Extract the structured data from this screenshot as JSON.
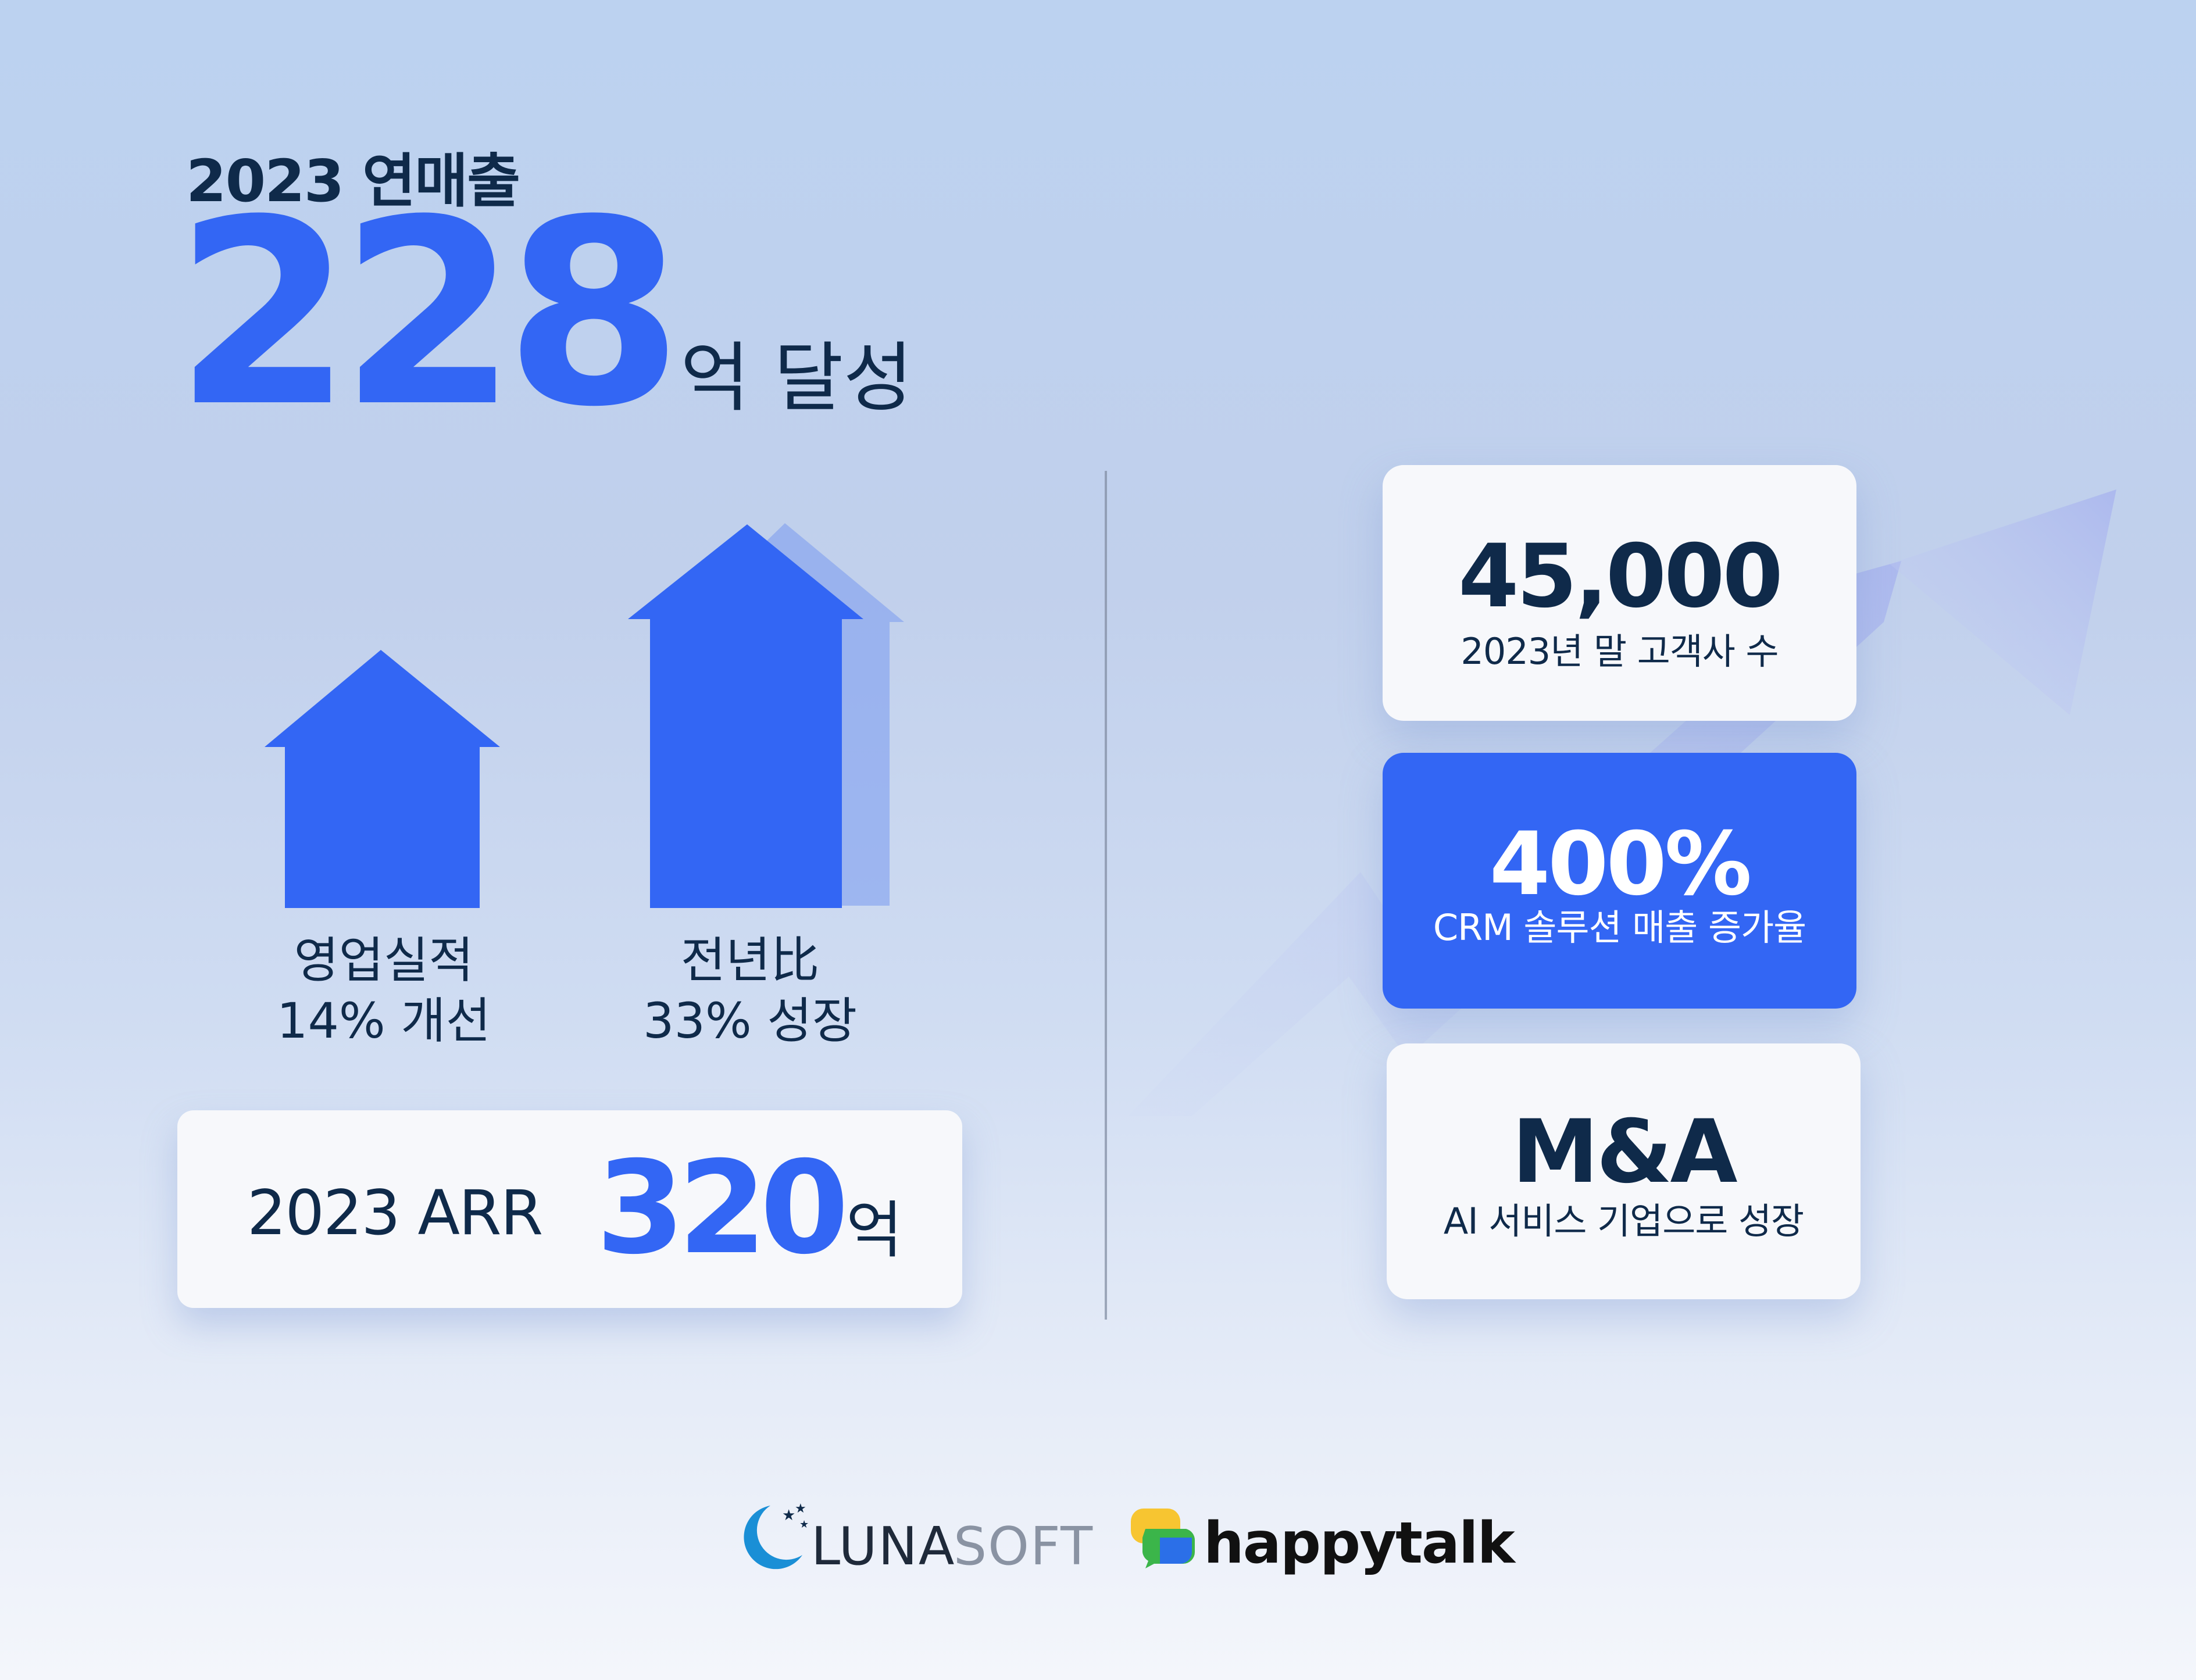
{
  "headline": {
    "subtitle": "2023 연매출",
    "value": "228",
    "unit": "억 달성"
  },
  "bars": [
    {
      "line1": "영업실적",
      "line2": "14% 개선"
    },
    {
      "line1": "전년比",
      "line2": "33% 성장"
    }
  ],
  "arr": {
    "label": "2023 ARR",
    "value": "320",
    "unit": "억"
  },
  "cards": [
    {
      "value": "45,000",
      "caption": "2023년 말 고객사 수"
    },
    {
      "value": "400%",
      "caption": "CRM 솔루션 매출 증가율"
    },
    {
      "value": "M&A",
      "caption": "AI 서비스 기업으로 성장"
    }
  ],
  "logos": {
    "lunasoft_a": "LUNA",
    "lunasoft_b": "SOFT",
    "happytalk": "happytalk"
  },
  "colors": {
    "accent": "#3366f4",
    "navy": "#0f2a4a",
    "card": "#f7f8fb"
  }
}
